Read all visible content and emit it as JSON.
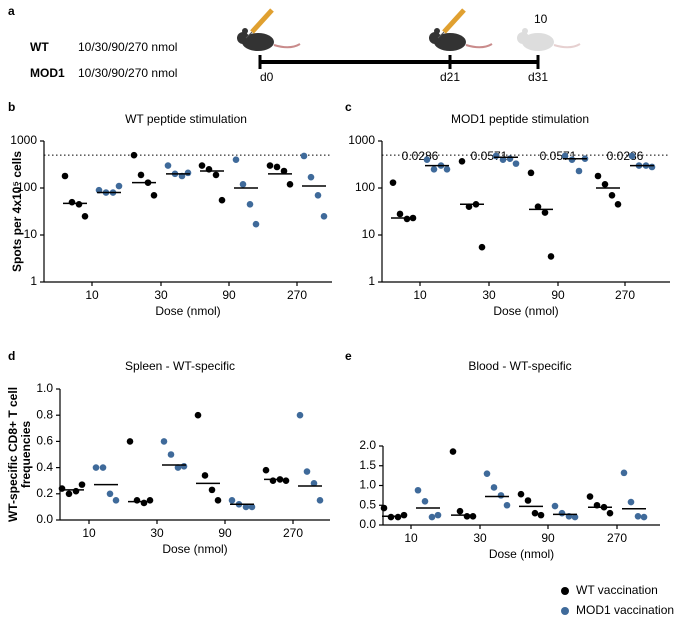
{
  "schematic": {
    "panel": "a",
    "groups": [
      {
        "name": "WT",
        "dose": "10/30/90/270 nmol",
        "color": "#000000"
      },
      {
        "name": "MOD1",
        "dose": "10/30/90/270 nmol",
        "color": "#3f6a9a"
      }
    ],
    "days": [
      "d0",
      "d21",
      "d31"
    ],
    "note": "10"
  },
  "legend": [
    {
      "name": "WT vaccination",
      "color": "#000000"
    },
    {
      "name": "MOD1 vaccination",
      "color": "#3f6a9a"
    }
  ],
  "chart_data": [
    {
      "panel": "b",
      "type": "strip",
      "title": "WT peptide stimulation",
      "xlabel": "Dose (nmol)",
      "ylabel": [
        "Spots per 4x10⁵ cells"
      ],
      "categories": [
        "10",
        "30",
        "90",
        "270"
      ],
      "log": true,
      "ylim": [
        1,
        1000
      ],
      "yticks": [
        1,
        10,
        100,
        1000
      ],
      "ref_line": 500,
      "series": [
        {
          "color": "#000000",
          "values": [
            [
              180,
              50,
              45,
              25
            ],
            [
              500,
              190,
              130,
              70
            ],
            [
              300,
              250,
              190,
              55
            ],
            [
              300,
              280,
              230,
              120
            ]
          ],
          "medians": [
            47,
            130,
            230,
            200
          ]
        },
        {
          "color": "#3f6a9a",
          "values": [
            [
              90,
              80,
              80,
              110
            ],
            [
              300,
              200,
              180,
              210
            ],
            [
              400,
              120,
              45,
              17
            ],
            [
              480,
              170,
              70,
              25
            ]
          ],
          "medians": [
            80,
            200,
            100,
            110
          ]
        }
      ]
    },
    {
      "panel": "c",
      "type": "strip",
      "title": "MOD1 peptide stimulation",
      "xlabel": "Dose (nmol)",
      "categories": [
        "10",
        "30",
        "90",
        "270"
      ],
      "log": true,
      "ylim": [
        1,
        1000
      ],
      "yticks": [
        1,
        10,
        100,
        1000
      ],
      "ref_line": 500,
      "p_values": [
        0.0286,
        0.0571,
        0.0571,
        0.0286
      ],
      "series": [
        {
          "color": "#000000",
          "values": [
            [
              130,
              28,
              22,
              23
            ],
            [
              370,
              40,
              45,
              5.5
            ],
            [
              210,
              40,
              30,
              3.5
            ],
            [
              180,
              120,
              70,
              45
            ]
          ],
          "medians": [
            23,
            45,
            35,
            100
          ]
        },
        {
          "color": "#3f6a9a",
          "values": [
            [
              400,
              250,
              300,
              250
            ],
            [
              480,
              400,
              420,
              330
            ],
            [
              480,
              400,
              230,
              420
            ],
            [
              480,
              300,
              300,
              280
            ]
          ],
          "medians": [
            300,
            450,
            420,
            300
          ]
        }
      ]
    },
    {
      "panel": "d",
      "type": "strip",
      "title": "Spleen - WT-specific",
      "xlabel": "Dose (nmol)",
      "ylabel": [
        "WT-specific CD8+ T cell",
        "frequencies"
      ],
      "categories": [
        "10",
        "30",
        "90",
        "270"
      ],
      "log": false,
      "ylim": [
        0,
        1
      ],
      "yticks": [
        {
          "value": 0,
          "label": "0.0"
        },
        0.2,
        0.4,
        0.6,
        0.8,
        {
          "value": 1,
          "label": "1.0"
        }
      ],
      "series": [
        {
          "color": "#000000",
          "values": [
            [
              0.24,
              0.2,
              0.22,
              0.27
            ],
            [
              0.6,
              0.15,
              0.13,
              0.15
            ],
            [
              0.8,
              0.34,
              0.23,
              0.15
            ],
            [
              0.38,
              0.3,
              0.31,
              0.3
            ]
          ],
          "medians": [
            0.23,
            0.14,
            0.28,
            0.31
          ]
        },
        {
          "color": "#3f6a9a",
          "values": [
            [
              0.4,
              0.4,
              0.2,
              0.15
            ],
            [
              0.6,
              0.5,
              0.4,
              0.41
            ],
            [
              0.15,
              0.12,
              0.1,
              0.1
            ],
            [
              0.8,
              0.37,
              0.28,
              0.15
            ]
          ],
          "medians": [
            0.27,
            0.42,
            0.12,
            0.26
          ]
        }
      ]
    },
    {
      "panel": "e",
      "type": "strip",
      "title": "Blood - WT-specific",
      "xlabel": "Dose (nmol)",
      "categories": [
        "10",
        "30",
        "90",
        "270"
      ],
      "log": false,
      "ylim": [
        0,
        2
      ],
      "yticks": [
        {
          "value": 0,
          "label": "0.0"
        },
        0.5,
        {
          "value": 1,
          "label": "1.0"
        },
        1.5,
        {
          "value": 2,
          "label": "2.0"
        }
      ],
      "series": [
        {
          "color": "#000000",
          "values": [
            [
              0.43,
              0.2,
              0.2,
              0.25
            ],
            [
              1.86,
              0.35,
              0.22,
              0.22
            ],
            [
              0.78,
              0.62,
              0.3,
              0.25
            ],
            [
              0.72,
              0.5,
              0.45,
              0.3
            ]
          ],
          "medians": [
            0.22,
            0.25,
            0.47,
            0.45
          ]
        },
        {
          "color": "#3f6a9a",
          "values": [
            [
              0.88,
              0.6,
              0.2,
              0.25
            ],
            [
              1.3,
              0.95,
              0.75,
              0.5
            ],
            [
              0.48,
              0.3,
              0.22,
              0.2
            ],
            [
              1.32,
              0.58,
              0.22,
              0.2
            ]
          ],
          "medians": [
            0.43,
            0.72,
            0.27,
            0.41
          ]
        }
      ]
    }
  ]
}
